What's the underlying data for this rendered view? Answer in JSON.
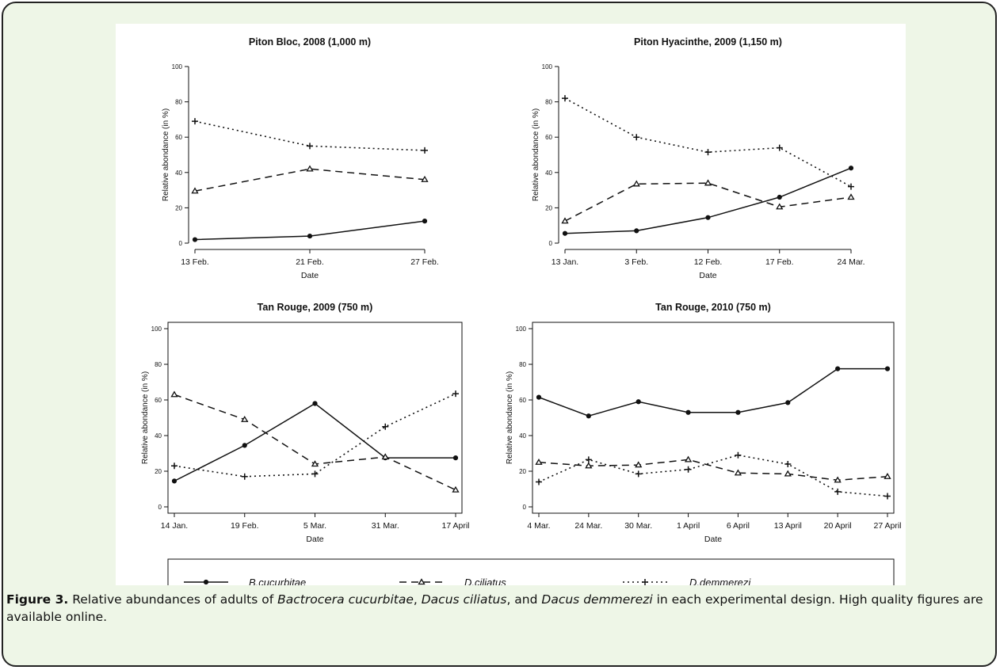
{
  "caption": {
    "label": "Figure 3.",
    "segments": [
      {
        "text": " Relative abundances of adults of ",
        "italic": false
      },
      {
        "text": "Bactrocera cucurbitae",
        "italic": true
      },
      {
        "text": ", ",
        "italic": false
      },
      {
        "text": "Dacus ciliatus",
        "italic": true
      },
      {
        "text": ", and ",
        "italic": false
      },
      {
        "text": "Dacus demmerezi",
        "italic": true
      },
      {
        "text": " in each experimental design. High quality figures are available online.",
        "italic": false
      }
    ]
  },
  "legend": [
    {
      "label": "B.cucurbitae",
      "dash": "solid",
      "marker": "circle"
    },
    {
      "label": "D.ciliatus",
      "dash": "dashed",
      "marker": "triangle"
    },
    {
      "label": "D.demmerezi",
      "dash": "dotted",
      "marker": "plus"
    }
  ],
  "chart_data": [
    {
      "type": "line",
      "title": "Piton Bloc, 2008 (1,000 m)",
      "xlabel": "Date",
      "ylabel": "Relative abondance (in %)",
      "ylim": [
        0,
        100
      ],
      "yticks": [
        0,
        20,
        40,
        60,
        80,
        100
      ],
      "categories": [
        "13 Feb.",
        "21 Feb.",
        "27 Feb."
      ],
      "series": [
        {
          "name": "B.cucurbitae",
          "values": [
            2,
            4,
            12.5
          ]
        },
        {
          "name": "D.ciliatus",
          "values": [
            29.5,
            42,
            36
          ]
        },
        {
          "name": "D.demmerezi",
          "values": [
            69,
            55,
            52.5
          ]
        }
      ]
    },
    {
      "type": "line",
      "title": "Piton Hyacinthe, 2009 (1,150 m)",
      "xlabel": "Date",
      "ylabel": "Relative abondance (in %)",
      "ylim": [
        0,
        100
      ],
      "yticks": [
        0,
        20,
        40,
        60,
        80,
        100
      ],
      "categories": [
        "13 Jan.",
        "3 Feb.",
        "12 Feb.",
        "17 Feb.",
        "24 Mar."
      ],
      "series": [
        {
          "name": "B.cucurbitae",
          "values": [
            5.5,
            7,
            14.5,
            26,
            42.5
          ]
        },
        {
          "name": "D.ciliatus",
          "values": [
            12.5,
            33.5,
            34,
            20.5,
            26
          ]
        },
        {
          "name": "D.demmerezi",
          "values": [
            82,
            60,
            51.5,
            54,
            32
          ]
        }
      ]
    },
    {
      "type": "line",
      "title": "Tan Rouge, 2009 (750 m)",
      "xlabel": "Date",
      "ylabel": "Relative abondance (in %)",
      "ylim": [
        0,
        100
      ],
      "yticks": [
        0,
        20,
        40,
        60,
        80,
        100
      ],
      "categories": [
        "14 Jan.",
        "19 Feb.",
        "5 Mar.",
        "31 Mar.",
        "17 April"
      ],
      "series": [
        {
          "name": "B.cucurbitae",
          "values": [
            14.5,
            34.5,
            58,
            27.5,
            27.5
          ]
        },
        {
          "name": "D.ciliatus",
          "values": [
            63,
            49,
            24,
            28,
            9.5
          ]
        },
        {
          "name": "D.demmerezi",
          "values": [
            23,
            17,
            18.5,
            45,
            63.5
          ]
        }
      ]
    },
    {
      "type": "line",
      "title": "Tan Rouge, 2010 (750 m)",
      "xlabel": "Date",
      "ylabel": "Relative abondance (in %)",
      "ylim": [
        0,
        100
      ],
      "yticks": [
        0,
        20,
        40,
        60,
        80,
        100
      ],
      "categories": [
        "4 Mar.",
        "24 Mar.",
        "30 Mar.",
        "1 April",
        "6 April",
        "13 April",
        "20 April",
        "27 April"
      ],
      "series": [
        {
          "name": "B.cucurbitae",
          "values": [
            61.5,
            51,
            59,
            53,
            53,
            58.5,
            77.5,
            77.5
          ]
        },
        {
          "name": "D.ciliatus",
          "values": [
            25,
            23,
            23.5,
            26.5,
            19,
            18.5,
            15,
            17
          ]
        },
        {
          "name": "D.demmerezi",
          "values": [
            14,
            26.5,
            18.5,
            21,
            29,
            24,
            8.5,
            6
          ]
        }
      ]
    }
  ]
}
